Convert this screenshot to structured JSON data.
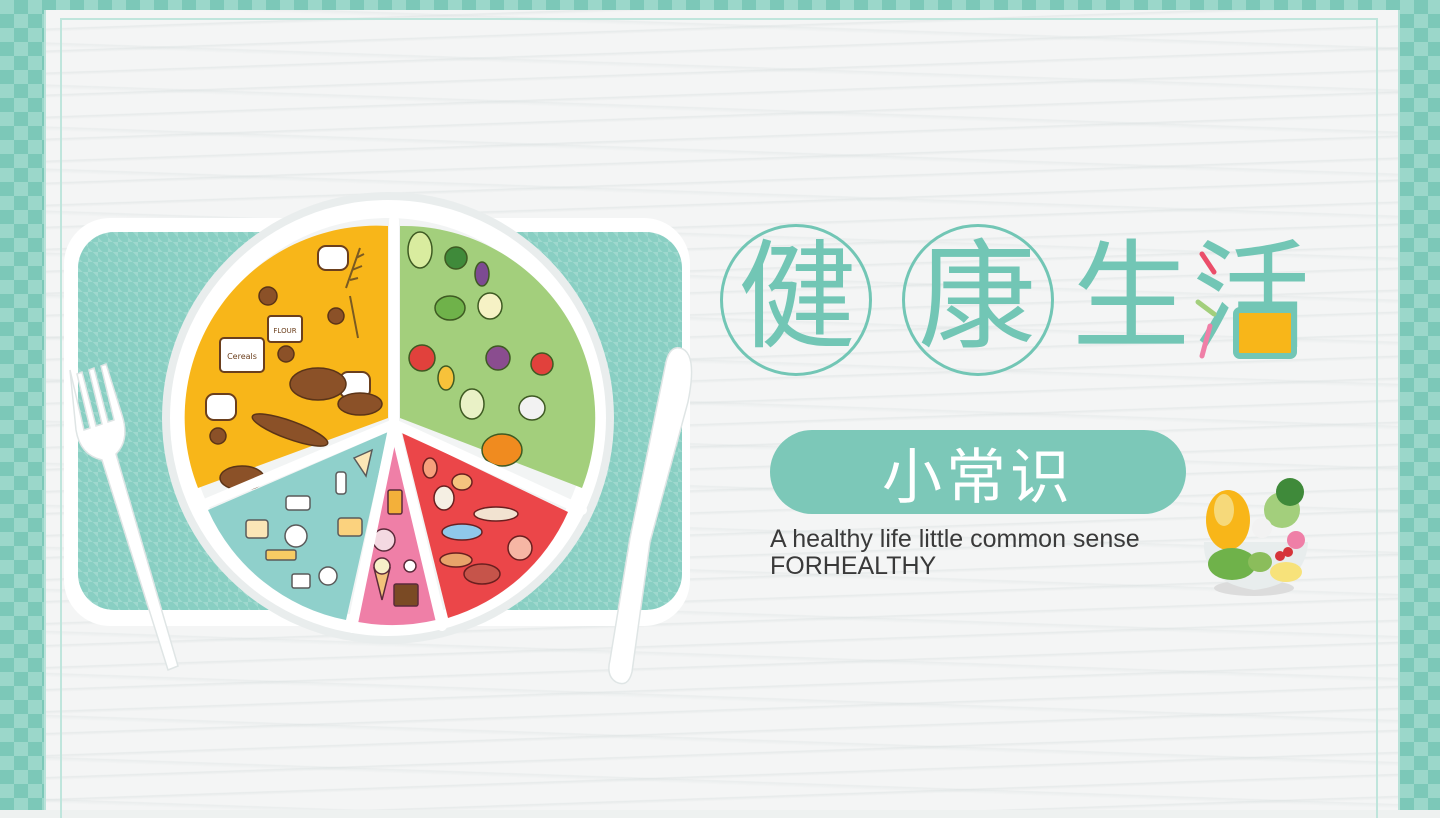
{
  "slide": {
    "title_chars": [
      "健",
      "康",
      "生",
      "活"
    ],
    "subtitle": "小常识",
    "english_line1": "A healthy life little common sense",
    "english_line2": "FORHEALTHY"
  },
  "colors": {
    "teal": "#72c6b5",
    "grain_yellow": "#f8b619",
    "veg_green": "#a3cf7c",
    "dairy_blue": "#8fd0cb",
    "sweets_pink": "#ef7fa7",
    "protein_red": "#eb4649"
  },
  "illustration": {
    "plate_labels": [
      "Cereals",
      "FLOUR"
    ],
    "icons": [
      "bread-icon",
      "wheat-icon",
      "vegetable-icon",
      "fish-icon",
      "cheese-icon",
      "candy-icon",
      "fork-icon",
      "knife-icon",
      "salad-icon"
    ]
  }
}
